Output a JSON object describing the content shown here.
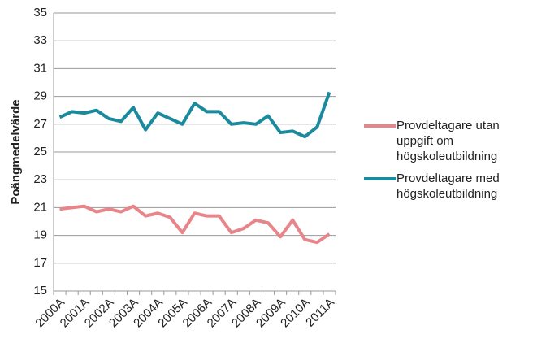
{
  "chart_data": {
    "type": "line",
    "y_label": "Poängmedelvärde",
    "categories": [
      "2000A",
      null,
      "2001A",
      null,
      "2002A",
      null,
      "2003A",
      null,
      "2004A",
      null,
      "2005A",
      null,
      "2006A",
      null,
      "2007A",
      null,
      "2008A",
      null,
      "2009A",
      null,
      "2010A",
      null,
      "2011A"
    ],
    "series": [
      {
        "name": "Provdeltagare utan uppgift om högskoleutbildning",
        "color": "#e8858a",
        "values": [
          20.9,
          21.0,
          21.1,
          20.7,
          20.9,
          20.7,
          21.1,
          20.4,
          20.6,
          20.3,
          19.2,
          20.6,
          20.4,
          20.4,
          19.2,
          19.5,
          20.1,
          19.9,
          18.9,
          20.1,
          18.7,
          18.5,
          19.1
        ]
      },
      {
        "name": "Provdeltagare med högskoleutbildning",
        "color": "#1a8a9c",
        "values": [
          27.5,
          27.9,
          27.8,
          28.0,
          27.4,
          27.2,
          28.2,
          26.6,
          27.8,
          27.4,
          27.0,
          28.5,
          27.9,
          27.9,
          27.0,
          27.1,
          27.0,
          27.6,
          26.4,
          26.5,
          26.1,
          26.8,
          29.3
        ]
      }
    ],
    "ylim": [
      15,
      35
    ],
    "yticks": [
      15,
      17,
      19,
      21,
      23,
      25,
      27,
      29,
      31,
      33,
      35
    ],
    "grid": true,
    "legend": "right"
  }
}
